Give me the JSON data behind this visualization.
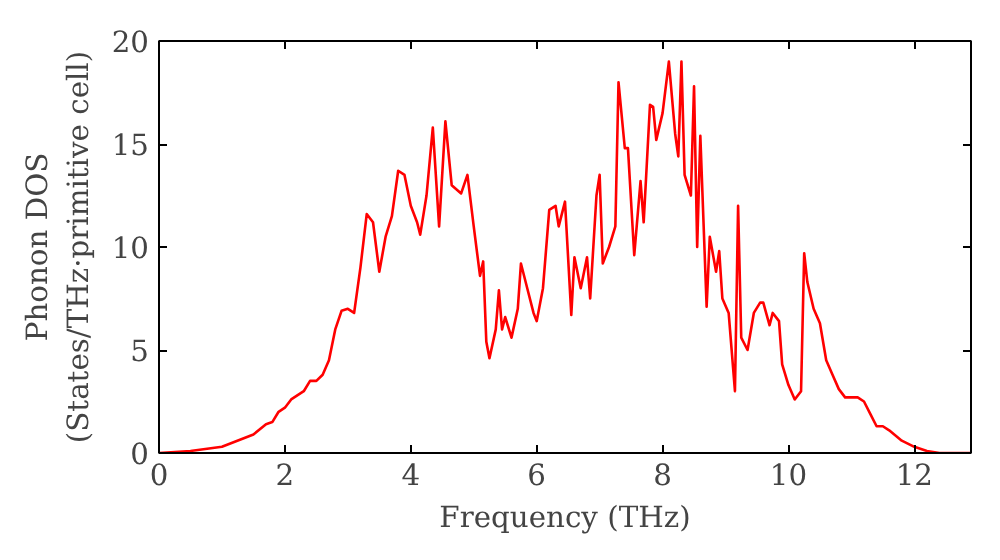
{
  "chart_data": {
    "type": "line",
    "xlabel": "Frequency (THz)",
    "ylabel": "Phonon DOS\n(States/THz·primitive cell)",
    "xlim": [
      0,
      12.9
    ],
    "ylim": [
      0,
      20
    ],
    "xticks": [
      0,
      2,
      4,
      6,
      8,
      10,
      12
    ],
    "yticks": [
      0,
      5,
      10,
      15,
      20
    ],
    "marker": "none",
    "line_style": "solid",
    "series": [
      {
        "color": "#ff0000",
        "x": [
          0,
          0.5,
          1.0,
          1.5,
          1.7,
          1.8,
          1.9,
          2.0,
          2.1,
          2.3,
          2.4,
          2.5,
          2.6,
          2.7,
          2.8,
          2.9,
          3.0,
          3.1,
          3.2,
          3.3,
          3.4,
          3.5,
          3.6,
          3.7,
          3.8,
          3.9,
          4.0,
          4.1,
          4.15,
          4.25,
          4.35,
          4.45,
          4.55,
          4.65,
          4.8,
          4.9,
          5.0,
          5.1,
          5.15,
          5.2,
          5.25,
          5.35,
          5.4,
          5.45,
          5.5,
          5.6,
          5.7,
          5.75,
          5.85,
          5.95,
          6.0,
          6.1,
          6.2,
          6.3,
          6.35,
          6.45,
          6.55,
          6.6,
          6.7,
          6.8,
          6.85,
          6.95,
          7.0,
          7.05,
          7.15,
          7.25,
          7.3,
          7.4,
          7.45,
          7.55,
          7.65,
          7.7,
          7.8,
          7.85,
          7.9,
          8.0,
          8.1,
          8.2,
          8.25,
          8.3,
          8.35,
          8.45,
          8.5,
          8.55,
          8.6,
          8.7,
          8.75,
          8.85,
          8.9,
          8.95,
          9.05,
          9.15,
          9.2,
          9.25,
          9.35,
          9.45,
          9.55,
          9.6,
          9.7,
          9.75,
          9.85,
          9.9,
          10.0,
          10.1,
          10.2,
          10.25,
          10.3,
          10.4,
          10.5,
          10.6,
          10.7,
          10.8,
          10.9,
          11.0,
          11.1,
          11.2,
          11.3,
          11.4,
          11.5,
          11.6,
          11.8,
          12.0,
          12.2,
          12.4,
          12.9
        ],
        "values": [
          0,
          0.1,
          0.3,
          0.9,
          1.4,
          1.5,
          2.0,
          2.2,
          2.6,
          3.0,
          3.5,
          3.5,
          3.8,
          4.5,
          6.0,
          6.9,
          7.0,
          6.8,
          9.0,
          11.6,
          11.2,
          8.8,
          10.5,
          11.5,
          13.7,
          13.5,
          12.0,
          11.2,
          10.6,
          12.5,
          15.8,
          11.0,
          16.1,
          13.0,
          12.6,
          13.5,
          11.0,
          8.6,
          9.3,
          5.4,
          4.6,
          6.0,
          7.9,
          6.0,
          6.6,
          5.6,
          7.0,
          9.2,
          8.0,
          6.8,
          6.4,
          8.0,
          11.8,
          12.0,
          11.0,
          12.2,
          6.7,
          9.5,
          8.0,
          9.5,
          7.5,
          12.5,
          13.5,
          9.2,
          10.0,
          11.0,
          18.0,
          14.8,
          14.8,
          9.6,
          13.2,
          11.2,
          16.9,
          16.8,
          15.2,
          16.5,
          19.0,
          15.5,
          14.4,
          19.0,
          13.5,
          12.5,
          17.8,
          10.0,
          15.4,
          7.1,
          10.5,
          8.8,
          9.8,
          7.5,
          6.8,
          3.0,
          12.0,
          5.6,
          5.0,
          6.8,
          7.3,
          7.3,
          6.2,
          6.8,
          6.4,
          4.3,
          3.3,
          2.6,
          3.0,
          9.7,
          8.3,
          7.0,
          6.3,
          4.5,
          3.8,
          3.1,
          2.7,
          2.7,
          2.7,
          2.5,
          1.9,
          1.3,
          1.3,
          1.1,
          0.6,
          0.3,
          0.1,
          0,
          0
        ]
      }
    ]
  }
}
